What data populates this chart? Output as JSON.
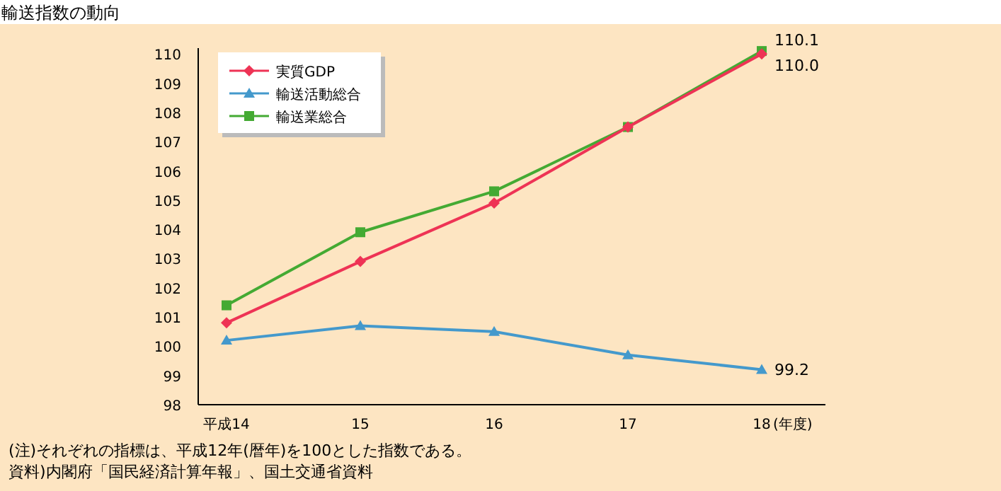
{
  "chart_data": {
    "type": "line",
    "title": "輸送指数の動向",
    "categories": [
      "平成14",
      "15",
      "16",
      "17",
      "18"
    ],
    "xlabel": "(年度)",
    "ylim": [
      98,
      110.2
    ],
    "yticks": [
      98,
      99,
      100,
      101,
      102,
      103,
      104,
      105,
      106,
      107,
      108,
      109,
      110
    ],
    "series": [
      {
        "name": "実質GDP",
        "color": "#ee3355",
        "marker": "diamond",
        "values": [
          100.8,
          102.9,
          104.9,
          107.5,
          110.0
        ],
        "value_labels": [
          null,
          null,
          null,
          null,
          "110.0"
        ]
      },
      {
        "name": "輸送活動総合",
        "color": "#4499cc",
        "marker": "triangle",
        "values": [
          100.2,
          100.7,
          100.5,
          99.7,
          99.2
        ],
        "value_labels": [
          null,
          null,
          null,
          null,
          "99.2"
        ]
      },
      {
        "name": "輸送業総合",
        "color": "#44aa33",
        "marker": "square",
        "values": [
          101.4,
          103.9,
          105.3,
          107.5,
          110.1
        ],
        "value_labels": [
          null,
          null,
          null,
          null,
          "110.1"
        ]
      }
    ],
    "legend": "top left",
    "grid": false,
    "annotations": [
      "(注)それぞれの指標は、平成12年(暦年)を100とした指数である。",
      "資料)内閣府「国民経済計算年報」、国土交通省資料"
    ]
  }
}
